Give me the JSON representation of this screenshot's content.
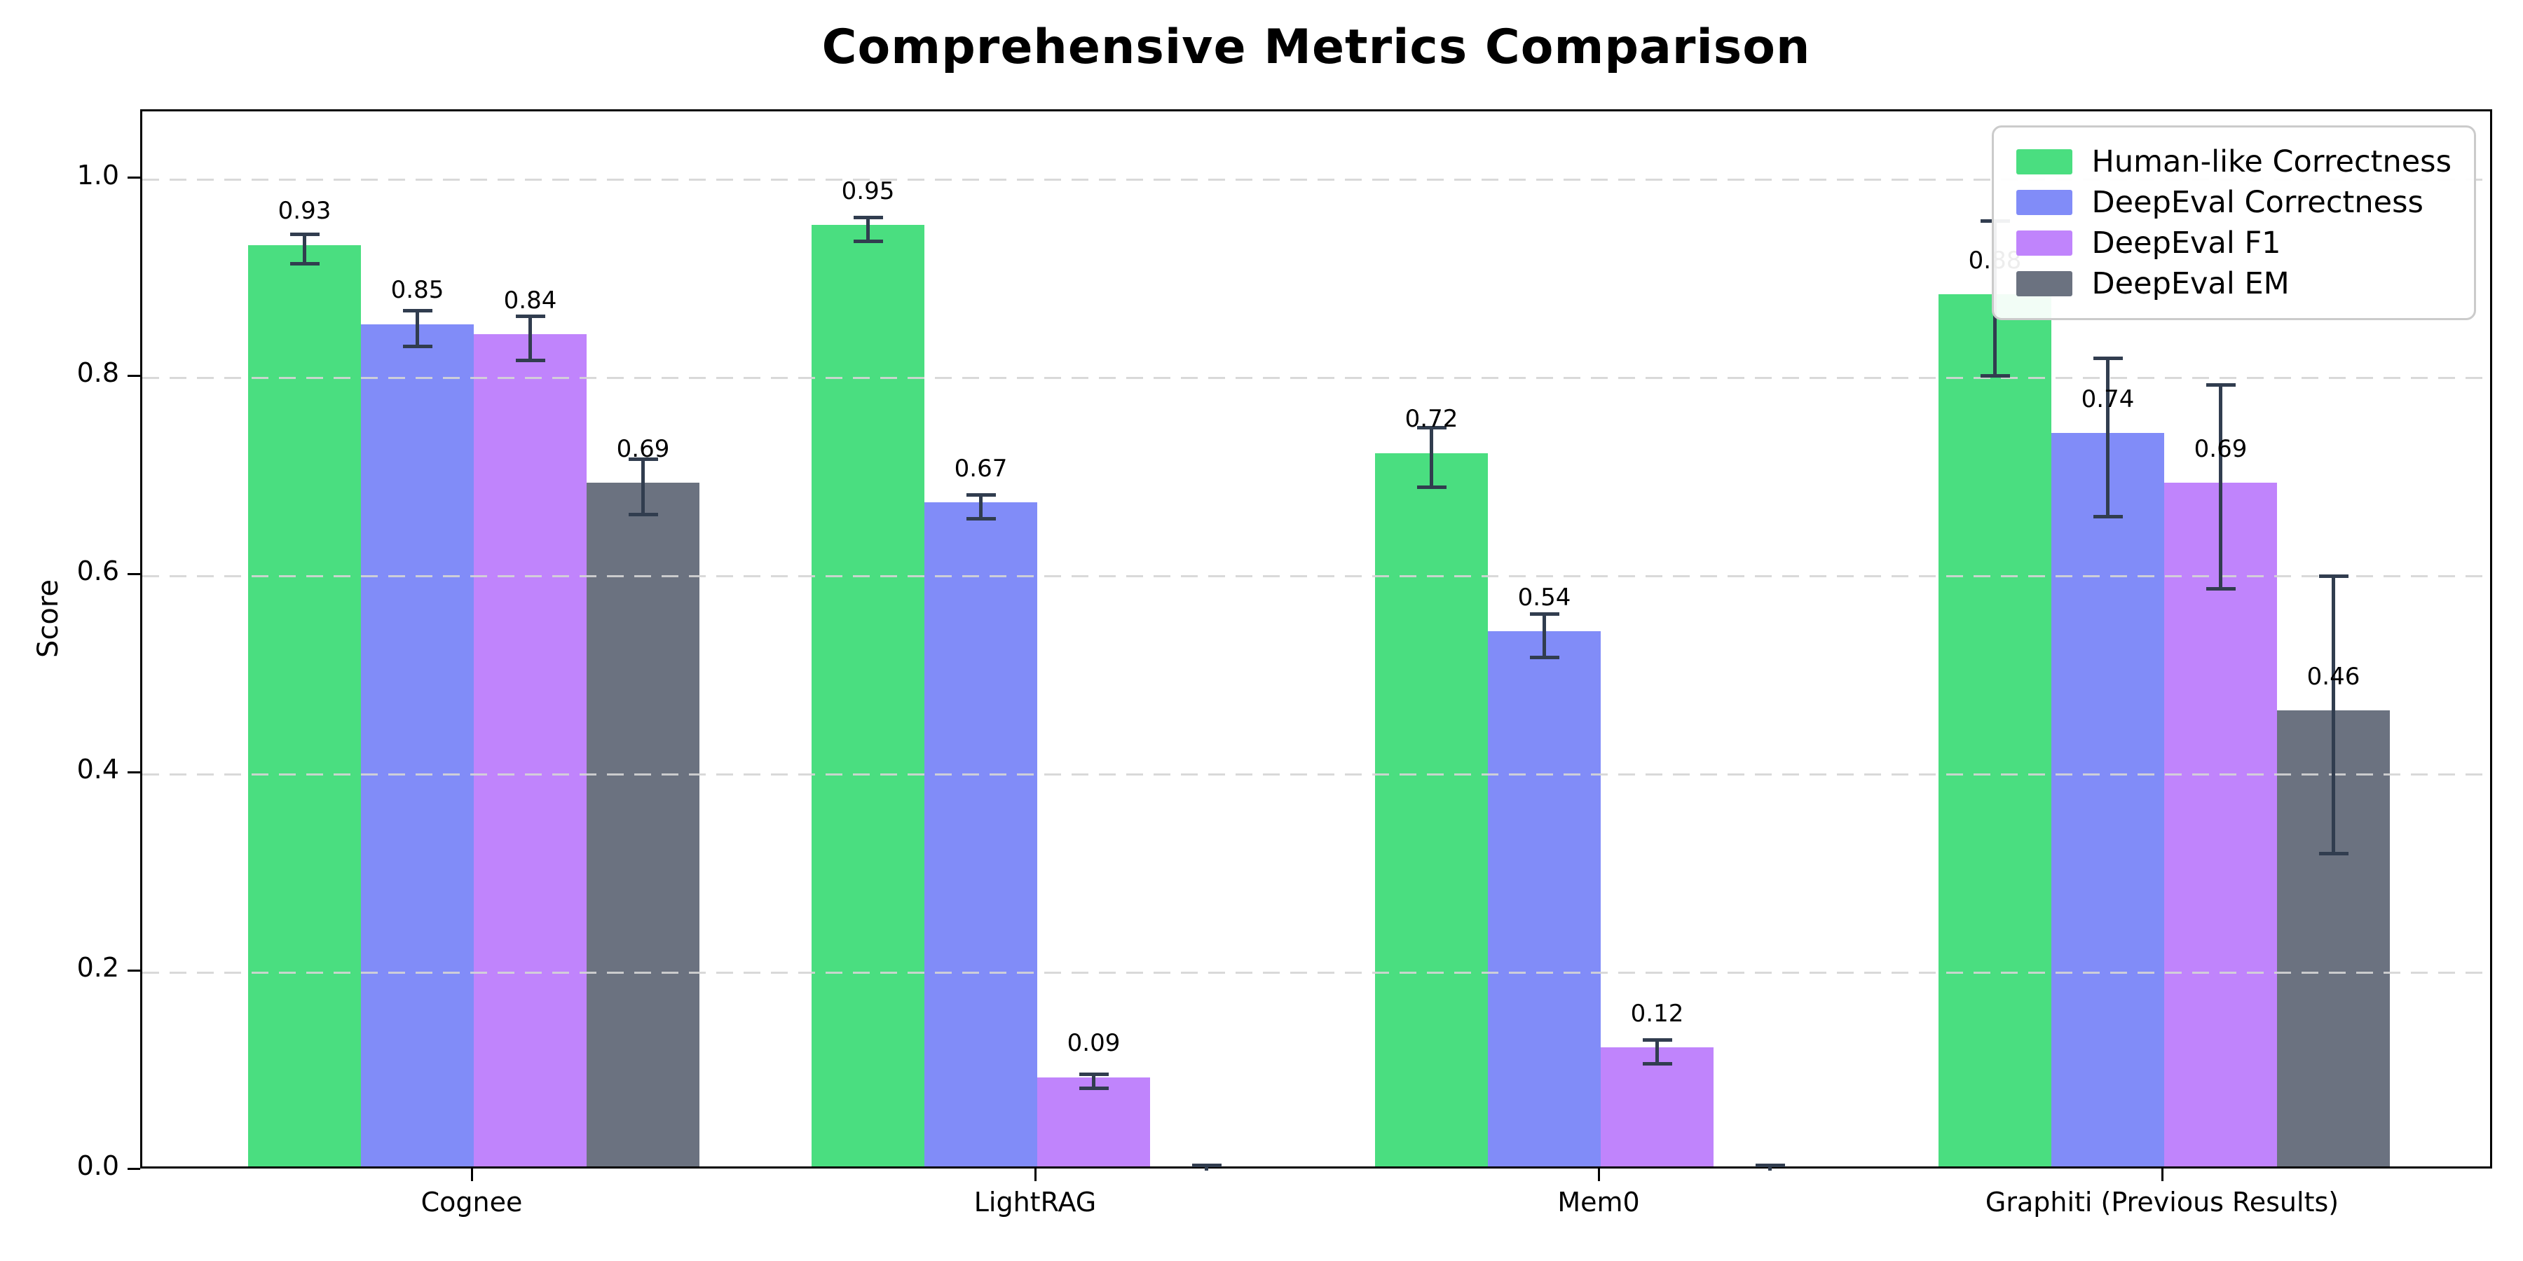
{
  "chart_data": {
    "type": "bar",
    "title": "Comprehensive Metrics Comparison",
    "ylabel": "Score",
    "categories": [
      "Cognee",
      "LightRAG",
      "Mem0",
      "Graphiti (Previous Results)"
    ],
    "series": [
      {
        "name": "Human-like Correctness",
        "color": "#4ade80",
        "values": [
          0.93,
          0.95,
          0.72,
          0.88
        ],
        "errors": [
          0.015,
          0.012,
          0.03,
          0.078
        ],
        "labels": [
          "0.93",
          "0.95",
          "0.72",
          "0.88"
        ]
      },
      {
        "name": "DeepEval Correctness",
        "color": "#818cf8",
        "values": [
          0.85,
          0.67,
          0.54,
          0.74
        ],
        "errors": [
          0.018,
          0.012,
          0.022,
          0.08
        ],
        "labels": [
          "0.85",
          "0.67",
          "0.54",
          "0.74"
        ]
      },
      {
        "name": "DeepEval F1",
        "color": "#c084fc",
        "values": [
          0.84,
          0.09,
          0.12,
          0.69
        ],
        "errors": [
          0.022,
          0.007,
          0.012,
          0.103
        ],
        "labels": [
          "0.84",
          "0.09",
          "0.12",
          "0.69"
        ]
      },
      {
        "name": "DeepEval EM",
        "color": "#6b7280",
        "values": [
          0.69,
          0.0,
          0.0,
          0.46
        ],
        "errors": [
          0.028,
          0.005,
          0.005,
          0.14
        ],
        "labels": [
          "0.69",
          "",
          "",
          "0.46"
        ]
      }
    ],
    "yticks": [
      {
        "value": 0.0,
        "label": "0.0"
      },
      {
        "value": 0.2,
        "label": "0.2"
      },
      {
        "value": 0.4,
        "label": "0.4"
      },
      {
        "value": 0.6,
        "label": "0.6"
      },
      {
        "value": 0.8,
        "label": "0.8"
      },
      {
        "value": 1.0,
        "label": "1.0"
      }
    ],
    "ylim": [
      0,
      1.069
    ],
    "grid": "dashed-horizontal",
    "legend_position": "upper-right",
    "error_bar_color": "#313d4f",
    "grid_color": "#d5d5d5",
    "spine_color": "#000000"
  }
}
